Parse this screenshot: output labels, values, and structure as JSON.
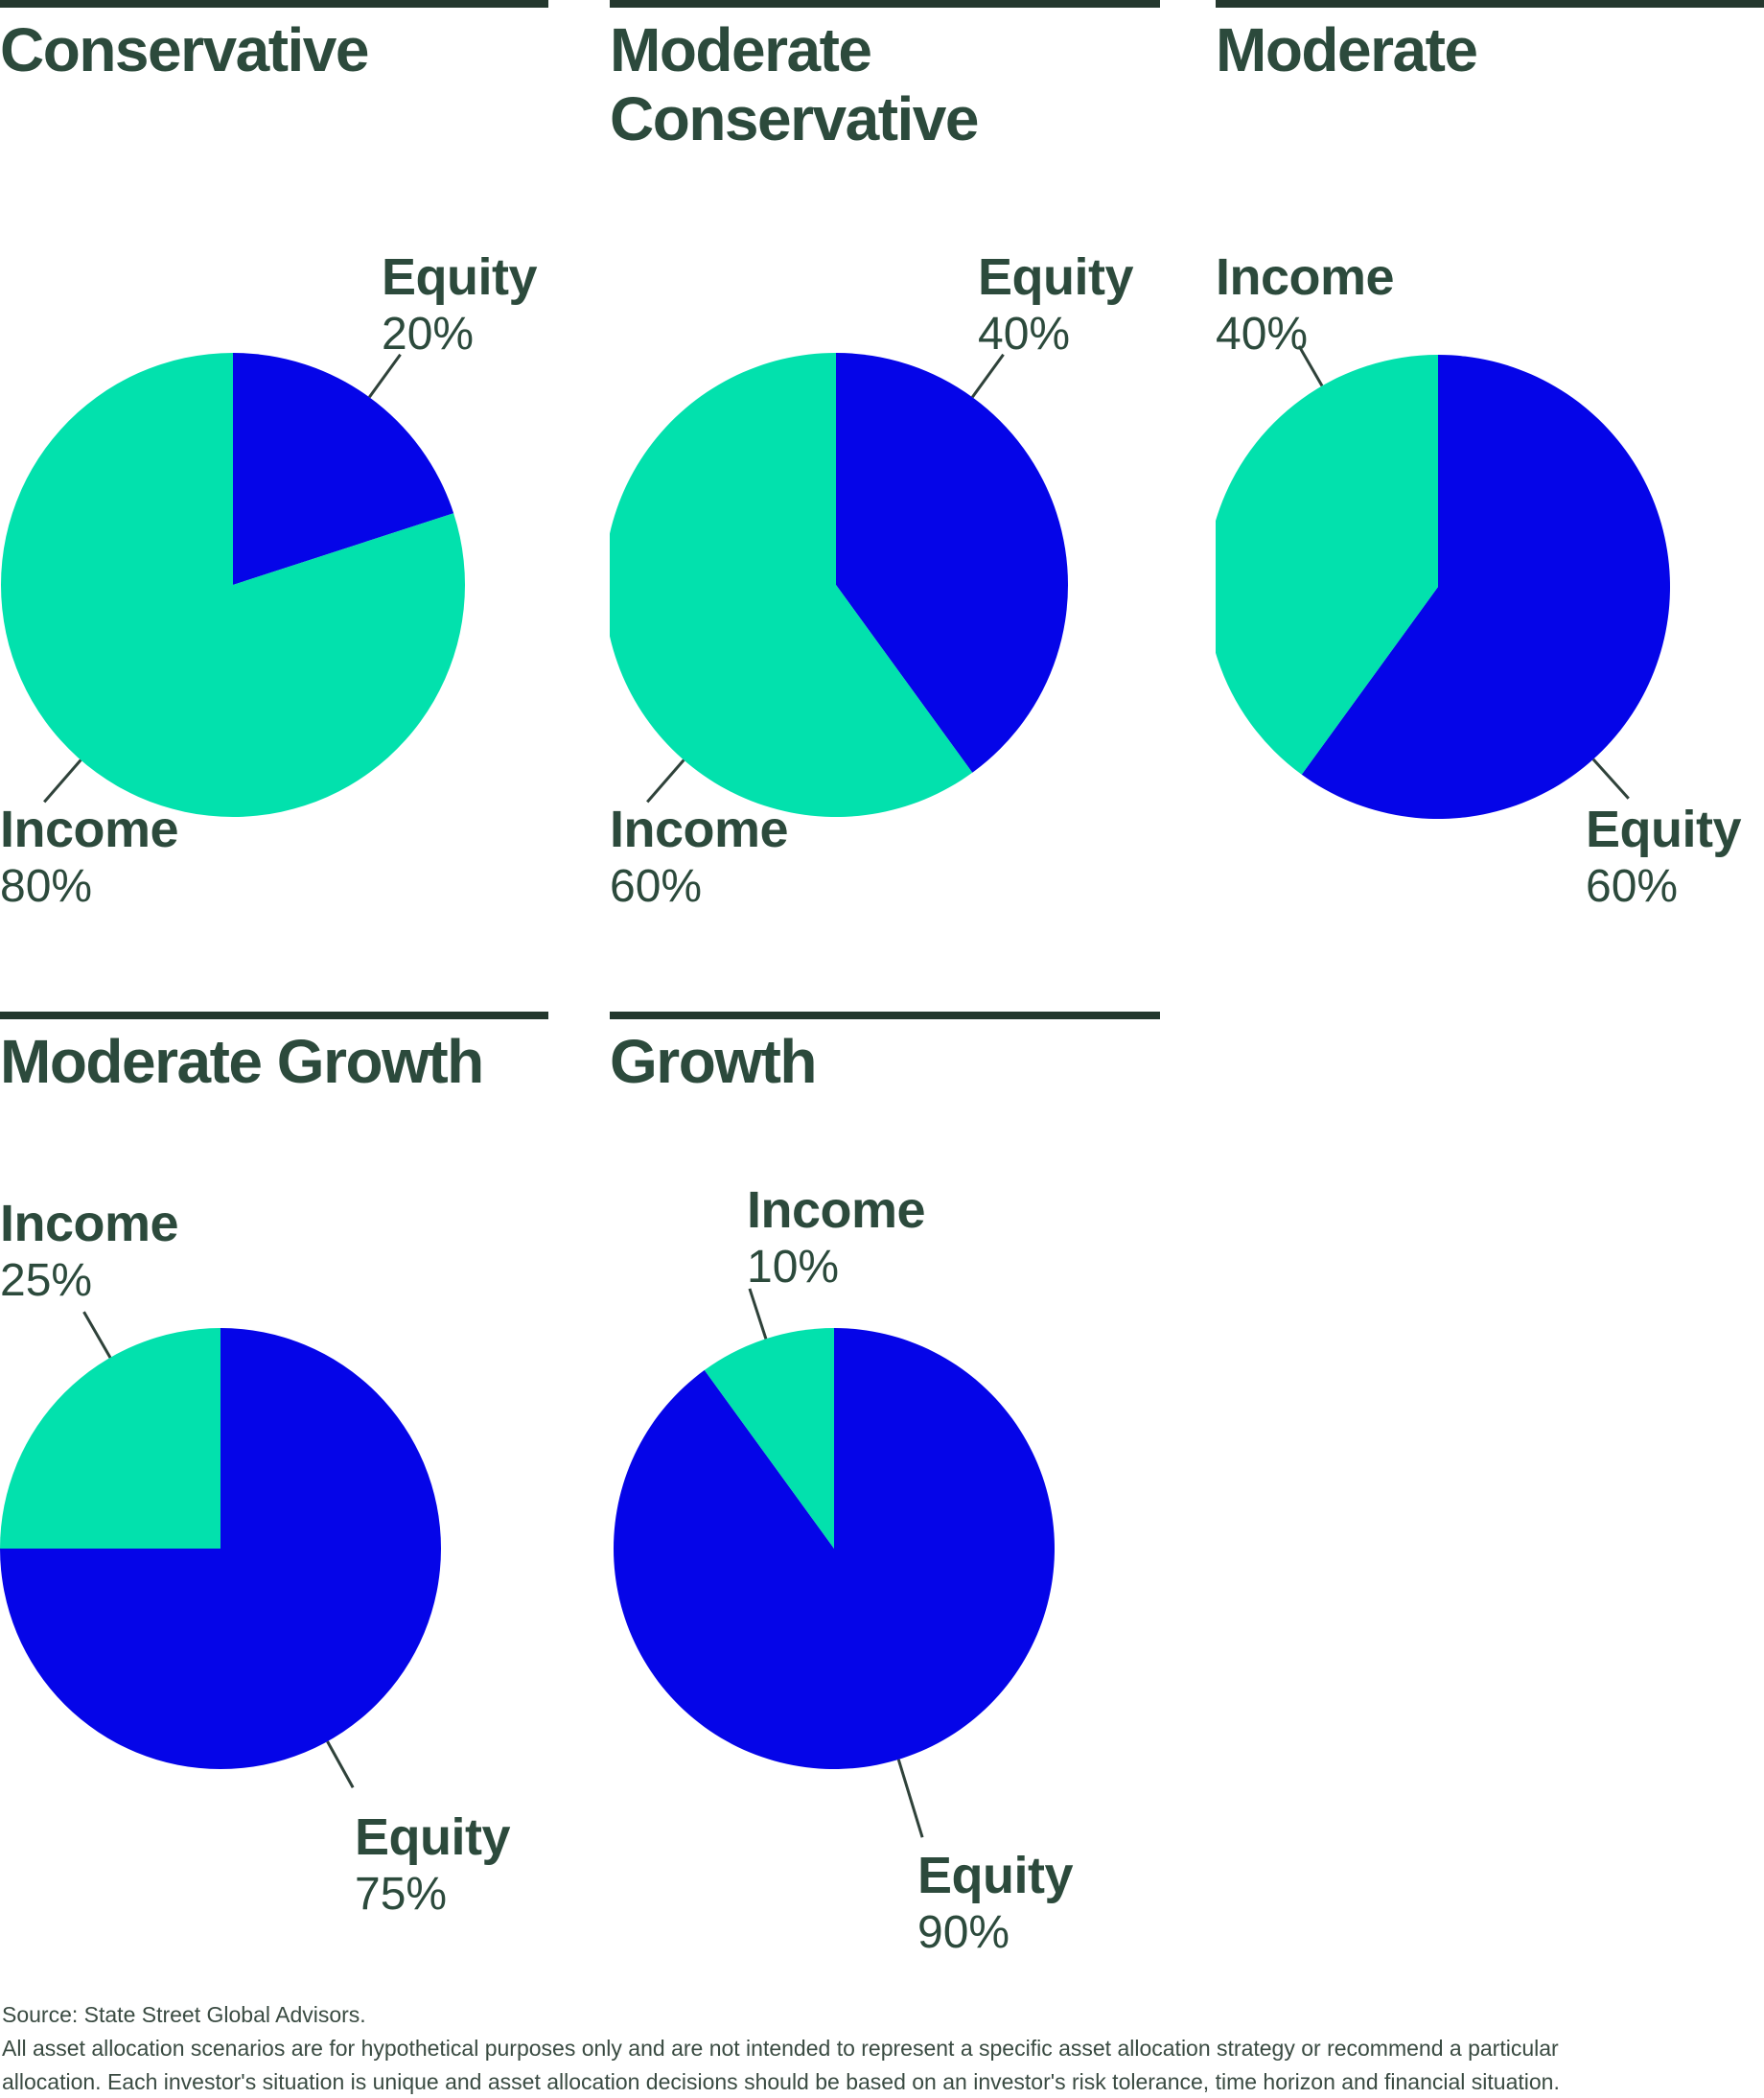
{
  "page": {
    "background": "#ffffff",
    "kind": "asset-allocation-model-pies"
  },
  "colors": {
    "equity_blue": "#0505e8",
    "income_teal": "#02e1ad",
    "heading_green": "#2c4a3c",
    "rule_dark": "#24382e",
    "leader_line": "#2f423a",
    "footnote_green": "#3a4b42"
  },
  "chart_data": [
    {
      "type": "pie",
      "title": "Conservative",
      "slices": [
        {
          "label": "Equity",
          "value": 20,
          "pct": "20%",
          "color": "#0505e8"
        },
        {
          "label": "Income",
          "value": 80,
          "pct": "80%",
          "color": "#02e1ad"
        }
      ],
      "layout_hints": {
        "start_angle": "top",
        "direction": "clockwise",
        "label_positions": {
          "Equity": "top-right",
          "Income": "bottom-left"
        },
        "legend": "none",
        "grid": "off"
      }
    },
    {
      "type": "pie",
      "title": "Moderate Conservative",
      "slices": [
        {
          "label": "Equity",
          "value": 40,
          "pct": "40%",
          "color": "#0505e8"
        },
        {
          "label": "Income",
          "value": 60,
          "pct": "60%",
          "color": "#02e1ad"
        }
      ],
      "layout_hints": {
        "start_angle": "top",
        "direction": "clockwise",
        "label_positions": {
          "Equity": "top-right",
          "Income": "bottom-left"
        },
        "legend": "none",
        "grid": "off"
      }
    },
    {
      "type": "pie",
      "title": "Moderate",
      "slices": [
        {
          "label": "Equity",
          "value": 60,
          "pct": "60%",
          "color": "#0505e8"
        },
        {
          "label": "Income",
          "value": 40,
          "pct": "40%",
          "color": "#02e1ad"
        }
      ],
      "layout_hints": {
        "start_angle": "top",
        "direction": "clockwise",
        "label_positions": {
          "Income": "top-left",
          "Equity": "bottom-right"
        },
        "legend": "none",
        "grid": "off"
      }
    },
    {
      "type": "pie",
      "title": "Moderate Growth",
      "slices": [
        {
          "label": "Equity",
          "value": 75,
          "pct": "75%",
          "color": "#0505e8"
        },
        {
          "label": "Income",
          "value": 25,
          "pct": "25%",
          "color": "#02e1ad"
        }
      ],
      "layout_hints": {
        "start_angle": "top",
        "direction": "clockwise",
        "label_positions": {
          "Income": "top-left",
          "Equity": "bottom-right"
        },
        "legend": "none",
        "grid": "off"
      }
    },
    {
      "type": "pie",
      "title": "Growth",
      "slices": [
        {
          "label": "Equity",
          "value": 90,
          "pct": "90%",
          "color": "#0505e8"
        },
        {
          "label": "Income",
          "value": 10,
          "pct": "10%",
          "color": "#02e1ad"
        }
      ],
      "layout_hints": {
        "start_angle": "top",
        "direction": "clockwise",
        "label_positions": {
          "Income": "top",
          "Equity": "bottom"
        },
        "legend": "none",
        "grid": "off"
      }
    }
  ],
  "footnote": {
    "line1": "Source: State Street Global Advisors.",
    "line2": "All asset allocation scenarios are for hypothetical purposes only and are not intended to represent a specific asset allocation strategy or recommend a particular",
    "line3": "allocation. Each investor's situation is unique and asset allocation decisions should be based on an investor's risk tolerance, time horizon and financial situation."
  }
}
